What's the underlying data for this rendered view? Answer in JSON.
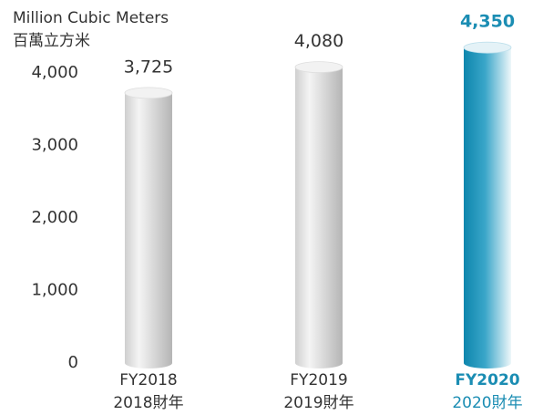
{
  "chart_data": {
    "type": "bar",
    "y_label": [
      "Million Cubic Meters",
      "百萬立方米"
    ],
    "categories": [
      [
        "FY2018",
        "2018財年"
      ],
      [
        "FY2019",
        "2019財年"
      ],
      [
        "FY2020",
        "2020財年"
      ]
    ],
    "values": [
      3725,
      4080,
      4350
    ],
    "value_labels": [
      "3,725",
      "4,080",
      "4,350"
    ],
    "colors": [
      "#d4d4d4",
      "#d4d4d4",
      "#1b8db3"
    ],
    "label_colors": [
      "#333333",
      "#333333",
      "#1b8db3"
    ],
    "highlight_index": 2,
    "ylim": [
      0,
      4500
    ],
    "yticks": [
      0,
      {
        "value": 1000,
        "label": "1,000"
      },
      {
        "value": 2000,
        "label": "2,000"
      },
      {
        "value": 3000,
        "label": "3,000"
      },
      {
        "value": 4000,
        "label": "4,000"
      }
    ],
    "grid": false
  }
}
